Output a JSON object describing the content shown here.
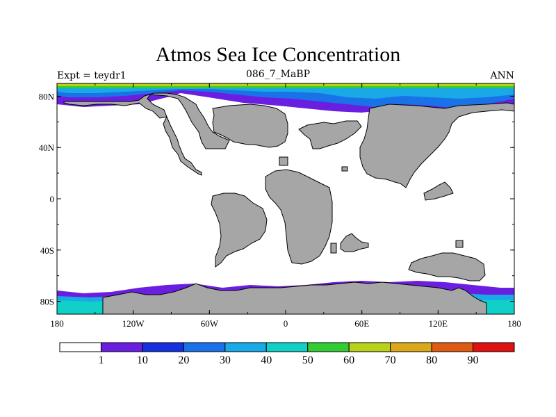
{
  "header": {
    "title": "Atmos Sea Ice Concentration",
    "experiment": "Expt = teydr1",
    "period": "086_7_MaBP",
    "season": "ANN"
  },
  "axes": {
    "x_ticks": [
      "180",
      "120W",
      "60W",
      "0",
      "60E",
      "120E",
      "180"
    ],
    "y_ticks": [
      "80N",
      "40N",
      "0",
      "40S",
      "80S"
    ]
  },
  "colorbar": {
    "labels": [
      "1",
      "10",
      "20",
      "30",
      "40",
      "50",
      "60",
      "70",
      "80",
      "90"
    ],
    "colors": [
      "#ffffff",
      "#6a1fe0",
      "#1530e0",
      "#1a72e8",
      "#18a9e6",
      "#10d0c8",
      "#34cc34",
      "#b9d11a",
      "#dba81a",
      "#df5a12",
      "#e01010"
    ]
  },
  "colors": {
    "land": "#a6a6a6",
    "ocean_no_ice": "#ffffff"
  }
}
